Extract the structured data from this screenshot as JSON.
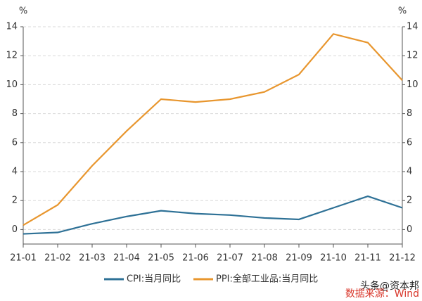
{
  "chart_data": {
    "type": "line",
    "y_unit": "%",
    "y2_unit": "%",
    "categories": [
      "21-01",
      "21-02",
      "21-03",
      "21-04",
      "21-05",
      "21-06",
      "21-07",
      "21-08",
      "21-09",
      "21-10",
      "21-11",
      "21-12"
    ],
    "series": [
      {
        "name": "CPI:当月同比",
        "color": "#2e7196",
        "values": [
          -0.3,
          -0.2,
          0.4,
          0.9,
          1.3,
          1.1,
          1.0,
          0.8,
          0.7,
          1.5,
          2.3,
          1.5
        ]
      },
      {
        "name": "PPI:全部工业品:当月同比",
        "color": "#e8962e",
        "values": [
          0.3,
          1.7,
          4.4,
          6.8,
          9.0,
          8.8,
          9.0,
          9.5,
          10.7,
          13.5,
          12.9,
          10.3
        ]
      }
    ],
    "ylim": [
      -1,
      14
    ],
    "yticks": [
      0,
      2,
      4,
      6,
      8,
      10,
      12,
      14
    ],
    "y2lim": [
      -1,
      14
    ],
    "y2ticks": [
      0,
      2,
      4,
      6,
      8,
      10,
      12,
      14
    ],
    "grid": true,
    "watermark": "头条@资本邦",
    "source": "数据来源：Wind"
  }
}
